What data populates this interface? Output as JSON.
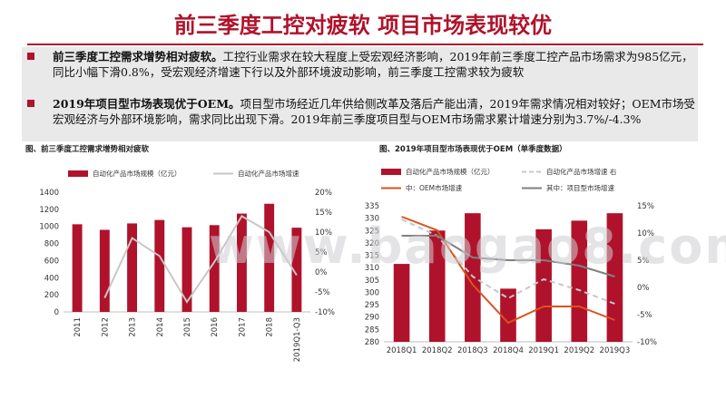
{
  "title": "前三季度工控对疲软 项目市场表现较优",
  "bullets": [
    {
      "lead": "前三季度工控需求增势相对疲软。",
      "text": "工控行业需求在较大程度上受宏观经济影响，2019年前三季度工控产品市场需求为985亿元，同比小幅下滑0.8%，受宏观经济增速下行以及外部环境波动影响，前三季度工控需求较为疲软"
    },
    {
      "lead": "2019年项目型市场表现优于OEM。",
      "text": "项目型市场经近几年供给侧改革及落后产能出清，2019年需求情况相对较好；OEM市场受宏观经济与外部环境影响，需求同比出现下滑。2019年前三季度项目型与OEM市场需求累计增速分别为3.7%/-4.3%"
    }
  ],
  "watermark": "www.baogao8.com",
  "chart_data": [
    {
      "type": "bar",
      "caption": "图、前三季度工控需求增势相对疲软",
      "categories": [
        "2011",
        "2012",
        "2013",
        "2014",
        "2015",
        "2016",
        "2017",
        "2018",
        "2019Q1-Q3"
      ],
      "series": [
        {
          "name": "自动化产品市场规模（亿元）",
          "type": "bar",
          "axis": "left",
          "color": "#b0122b",
          "values": [
            1025,
            960,
            1035,
            1075,
            990,
            1015,
            1150,
            1265,
            985
          ]
        },
        {
          "name": "自动化产品市场增速",
          "type": "line",
          "axis": "right",
          "color": "#c7c7c7",
          "values": [
            null,
            -6.5,
            8.5,
            4.0,
            -7.5,
            2.5,
            14.0,
            10.0,
            -0.8
          ]
        }
      ],
      "ylim_left": [
        0,
        1400
      ],
      "yticks_left": [
        "0",
        "200",
        "400",
        "600",
        "800",
        "1000",
        "1200",
        "1400"
      ],
      "ylim_right": [
        -10,
        20
      ],
      "yticks_right": [
        "-10%",
        "-5%",
        "0%",
        "5%",
        "10%",
        "15%",
        "20%"
      ],
      "legend": "top"
    },
    {
      "type": "bar",
      "caption": "图、2019年项目型市场表现优于OEM（单季度数据）",
      "categories": [
        "2018Q1",
        "2018Q2",
        "2018Q3",
        "2018Q4",
        "2019Q1",
        "2019Q2",
        "2019Q3"
      ],
      "series": [
        {
          "name": "自动化产品市场规模（亿元）",
          "type": "bar",
          "axis": "left",
          "color": "#b0122b",
          "values": [
            311.5,
            325,
            332,
            301.5,
            325.5,
            329,
            332
          ]
        },
        {
          "name": "自动化产品市场增速 右",
          "type": "line",
          "axis": "right",
          "color": "#c8c8c8",
          "dash": true,
          "values": [
            12.5,
            9.5,
            2.0,
            -2.0,
            1.5,
            -0.5,
            -3.0
          ]
        },
        {
          "name": "中：OEM市场增速",
          "type": "line",
          "axis": "right",
          "color": "#d9531e",
          "values": [
            13.0,
            10.5,
            0.5,
            -6.5,
            -3.5,
            -3.5,
            -6.0
          ]
        },
        {
          "name": "其中：项目型市场增速",
          "type": "line",
          "axis": "right",
          "color": "#808080",
          "values": [
            9.5,
            9.5,
            5.5,
            5.0,
            5.0,
            4.0,
            2.0
          ]
        }
      ],
      "ylim_left": [
        280,
        335
      ],
      "yticks_left": [
        "280",
        "285",
        "290",
        "295",
        "300",
        "305",
        "310",
        "315",
        "320",
        "325",
        "330",
        "335"
      ],
      "ylim_right": [
        -10,
        15
      ],
      "yticks_right": [
        "-10%",
        "-5%",
        "0%",
        "5%",
        "10%",
        "15%"
      ],
      "legend": "top"
    }
  ]
}
